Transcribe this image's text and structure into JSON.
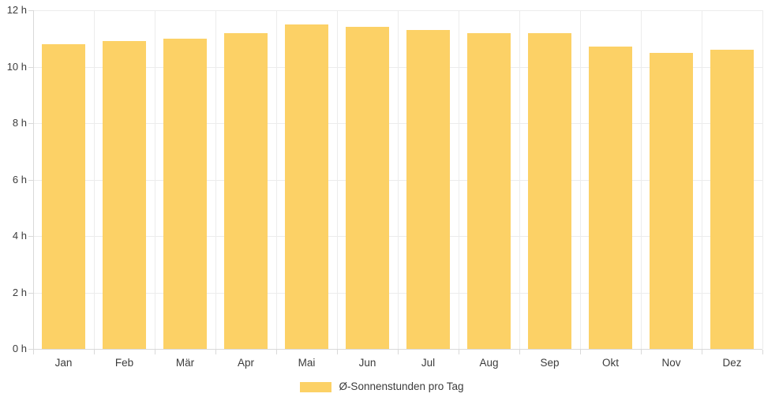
{
  "chart_data": {
    "type": "bar",
    "title": "",
    "categories": [
      "Jan",
      "Feb",
      "Mär",
      "Apr",
      "Mai",
      "Jun",
      "Jul",
      "Aug",
      "Sep",
      "Okt",
      "Nov",
      "Dez"
    ],
    "series": [
      {
        "name": "Ø-Sonnenstunden pro Tag",
        "values": [
          10.8,
          10.9,
          11.0,
          11.2,
          11.5,
          11.4,
          11.3,
          11.2,
          11.2,
          10.7,
          10.5,
          10.6
        ]
      }
    ],
    "unit": "h",
    "xlabel": "",
    "ylabel": "",
    "ylim": [
      0,
      12
    ],
    "ytick_step": 2,
    "ytick_labels": [
      "0 h",
      "2 h",
      "4 h",
      "6 h",
      "8 h",
      "10 h",
      "12 h"
    ],
    "grid": true,
    "legend_position": "bottom",
    "bar_color": "#fcd166"
  },
  "legend": {
    "label": "Ø-Sonnenstunden pro Tag",
    "swatch_color": "#fcd166"
  },
  "colors": {
    "bar": "#fcd166",
    "gridline": "#ececec",
    "axis": "#d9d9d9",
    "text": "#3c3c3c",
    "background": "#ffffff"
  }
}
